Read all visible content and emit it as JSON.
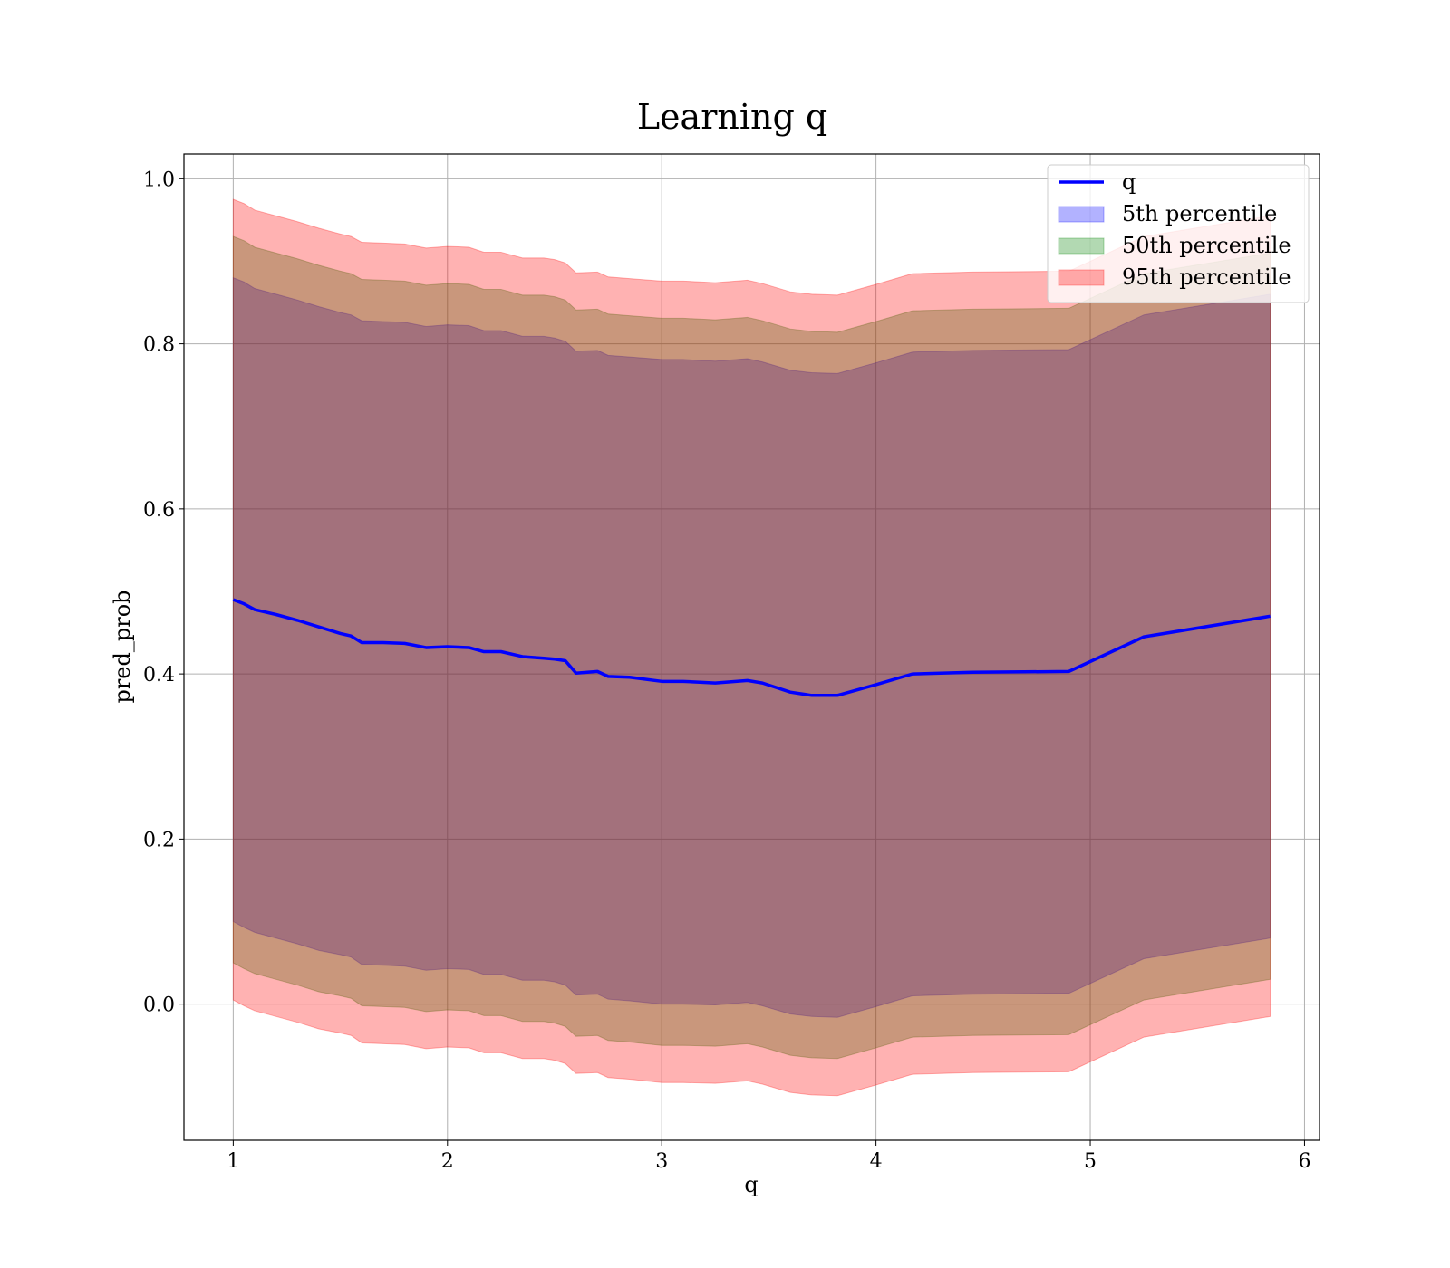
{
  "chart_data": {
    "type": "area",
    "title": "Learning q",
    "xlabel": "q",
    "ylabel": "pred_prob",
    "xlim": [
      0.77,
      6.07
    ],
    "ylim": [
      -0.165,
      1.03
    ],
    "xticks": [
      1,
      2,
      3,
      4,
      5,
      6
    ],
    "yticks": [
      0.0,
      0.2,
      0.4,
      0.6,
      0.8,
      1.0
    ],
    "xtick_labels": [
      "1",
      "2",
      "3",
      "4",
      "5",
      "6"
    ],
    "ytick_labels": [
      "0.0",
      "0.2",
      "0.4",
      "0.6",
      "0.8",
      "1.0"
    ],
    "grid": true,
    "legend_position": "top-right",
    "x": [
      1.0,
      1.05,
      1.1,
      1.2,
      1.3,
      1.4,
      1.5,
      1.55,
      1.6,
      1.7,
      1.8,
      1.9,
      2.0,
      2.1,
      2.17,
      2.25,
      2.35,
      2.45,
      2.5,
      2.55,
      2.6,
      2.7,
      2.75,
      2.85,
      3.0,
      3.1,
      3.25,
      3.4,
      3.47,
      3.6,
      3.7,
      3.82,
      4.0,
      4.17,
      4.45,
      4.9,
      5.25,
      5.84
    ],
    "series": [
      {
        "name": "q",
        "kind": "line",
        "color": "#0000ff",
        "values": [
          0.49,
          0.485,
          0.478,
          0.472,
          0.465,
          0.457,
          0.449,
          0.446,
          0.438,
          0.438,
          0.437,
          0.432,
          0.433,
          0.432,
          0.427,
          0.427,
          0.421,
          0.419,
          0.418,
          0.416,
          0.401,
          0.403,
          0.397,
          0.396,
          0.391,
          0.391,
          0.389,
          0.392,
          0.389,
          0.378,
          0.374,
          0.374,
          0.387,
          0.4,
          0.402,
          0.403,
          0.445,
          0.47
        ]
      },
      {
        "name": "5th percentile",
        "kind": "band",
        "color": "#0000ff",
        "opacity": 0.3,
        "lower": [
          0.1,
          0.093,
          0.087,
          0.08,
          0.073,
          0.065,
          0.06,
          0.057,
          0.048,
          0.047,
          0.046,
          0.041,
          0.043,
          0.042,
          0.036,
          0.036,
          0.029,
          0.029,
          0.027,
          0.023,
          0.011,
          0.012,
          0.006,
          0.004,
          0.0,
          0.0,
          -0.001,
          0.002,
          -0.002,
          -0.012,
          -0.015,
          -0.016,
          -0.003,
          0.01,
          0.012,
          0.013,
          0.055,
          0.08
        ],
        "upper": [
          0.88,
          0.875,
          0.867,
          0.86,
          0.853,
          0.845,
          0.838,
          0.835,
          0.828,
          0.827,
          0.826,
          0.821,
          0.823,
          0.822,
          0.816,
          0.816,
          0.809,
          0.809,
          0.807,
          0.803,
          0.791,
          0.792,
          0.786,
          0.784,
          0.781,
          0.781,
          0.779,
          0.782,
          0.778,
          0.768,
          0.765,
          0.764,
          0.777,
          0.79,
          0.792,
          0.793,
          0.835,
          0.86
        ]
      },
      {
        "name": "50th percentile",
        "kind": "band",
        "color": "#008000",
        "opacity": 0.3,
        "lower": [
          0.05,
          0.043,
          0.037,
          0.03,
          0.023,
          0.015,
          0.01,
          0.007,
          -0.002,
          -0.003,
          -0.004,
          -0.009,
          -0.007,
          -0.008,
          -0.014,
          -0.014,
          -0.021,
          -0.021,
          -0.023,
          -0.027,
          -0.039,
          -0.038,
          -0.044,
          -0.046,
          -0.05,
          -0.05,
          -0.051,
          -0.048,
          -0.052,
          -0.062,
          -0.065,
          -0.066,
          -0.053,
          -0.04,
          -0.038,
          -0.037,
          0.005,
          0.03
        ],
        "upper": [
          0.93,
          0.925,
          0.917,
          0.91,
          0.903,
          0.895,
          0.888,
          0.885,
          0.878,
          0.877,
          0.876,
          0.871,
          0.873,
          0.872,
          0.866,
          0.866,
          0.859,
          0.859,
          0.857,
          0.853,
          0.841,
          0.842,
          0.836,
          0.834,
          0.831,
          0.831,
          0.829,
          0.832,
          0.828,
          0.818,
          0.815,
          0.814,
          0.827,
          0.84,
          0.842,
          0.843,
          0.885,
          0.91
        ]
      },
      {
        "name": "95th percentile",
        "kind": "band",
        "color": "#ff0000",
        "opacity": 0.3,
        "lower": [
          0.005,
          -0.002,
          -0.008,
          -0.015,
          -0.022,
          -0.03,
          -0.035,
          -0.038,
          -0.047,
          -0.048,
          -0.049,
          -0.054,
          -0.052,
          -0.053,
          -0.059,
          -0.059,
          -0.066,
          -0.066,
          -0.068,
          -0.072,
          -0.084,
          -0.083,
          -0.089,
          -0.091,
          -0.095,
          -0.095,
          -0.096,
          -0.093,
          -0.097,
          -0.107,
          -0.11,
          -0.111,
          -0.098,
          -0.085,
          -0.083,
          -0.082,
          -0.04,
          -0.015
        ],
        "upper": [
          0.975,
          0.97,
          0.962,
          0.955,
          0.948,
          0.94,
          0.933,
          0.93,
          0.923,
          0.922,
          0.921,
          0.916,
          0.918,
          0.917,
          0.911,
          0.911,
          0.904,
          0.904,
          0.902,
          0.898,
          0.886,
          0.887,
          0.881,
          0.879,
          0.876,
          0.876,
          0.874,
          0.877,
          0.873,
          0.863,
          0.86,
          0.859,
          0.872,
          0.885,
          0.887,
          0.888,
          0.93,
          0.955
        ]
      }
    ]
  }
}
